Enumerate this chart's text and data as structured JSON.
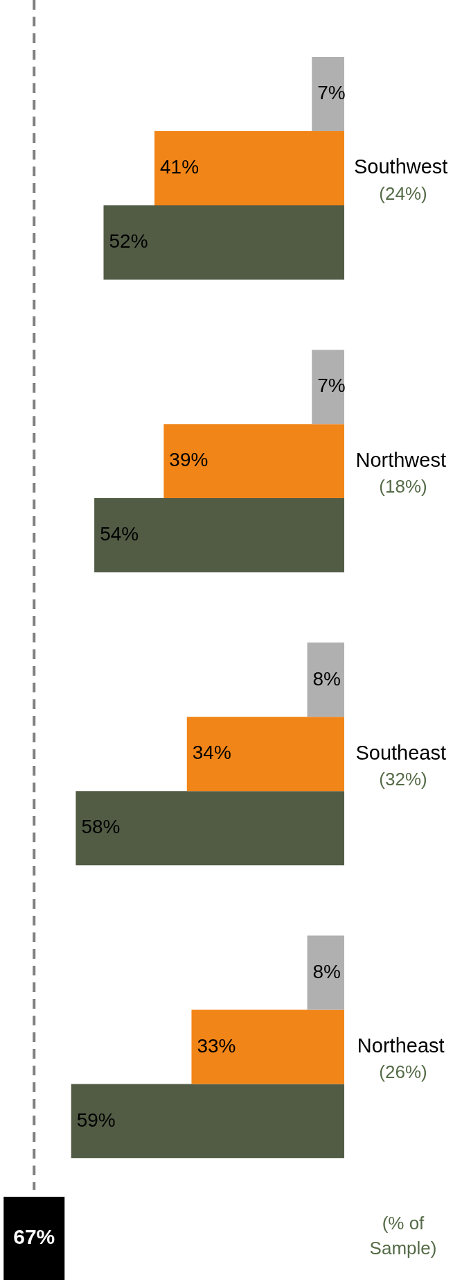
{
  "chart_data": {
    "type": "bar",
    "orientation": "horizontal",
    "categories": [
      "Southwest",
      "Northwest",
      "Southeast",
      "Northeast"
    ],
    "series": [
      {
        "color": "#b0b0b0",
        "values": [
          7,
          7,
          8,
          8
        ],
        "value_labels": [
          "7%",
          "7%",
          "8%",
          "8%"
        ]
      },
      {
        "color": "#f28518",
        "values": [
          41,
          39,
          34,
          33
        ],
        "value_labels": [
          "41%",
          "39%",
          "34%",
          "33%"
        ]
      },
      {
        "color": "#525c45",
        "values": [
          52,
          54,
          58,
          59
        ],
        "value_labels": [
          "52%",
          "54%",
          "58%",
          "59%"
        ]
      }
    ],
    "tick_labels": "y",
    "grid": false,
    "legend": false,
    "ref_lines": [
      {
        "axis": "x",
        "value": 67,
        "label": "67%",
        "color": "#808080",
        "line_style": "dashed"
      }
    ],
    "annotations": [
      "(% of Sample)",
      "(24%)",
      "(18%)",
      "(32%)",
      "(26%)"
    ]
  }
}
